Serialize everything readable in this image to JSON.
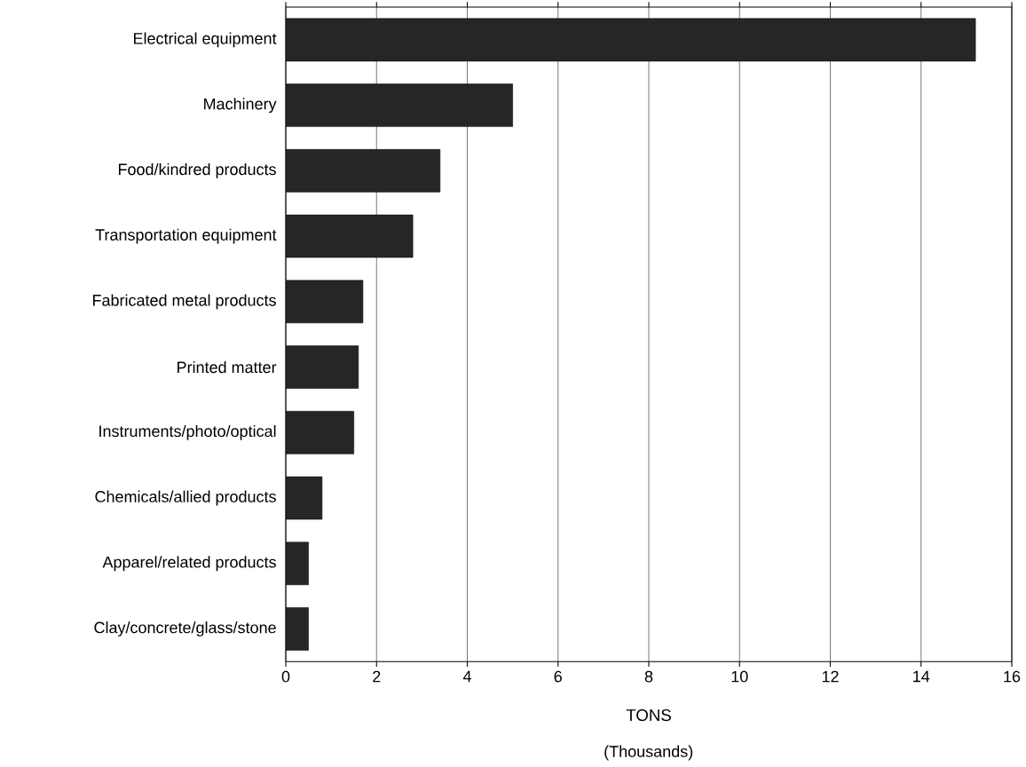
{
  "chart_data": {
    "type": "bar",
    "orientation": "horizontal",
    "xlabel": "TONS",
    "annotations": [
      "(Thousands)"
    ],
    "categories": [
      "Electrical equipment",
      "Machinery",
      "Food/kindred products",
      "Transportation equipment",
      "Fabricated metal products",
      "Printed matter",
      "Instruments/photo/optical",
      "Chemicals/allied products",
      "Apparel/related products",
      "Clay/concrete/glass/stone"
    ],
    "values": [
      15.2,
      5.0,
      3.4,
      2.8,
      1.7,
      1.6,
      1.5,
      0.8,
      0.5,
      0.5
    ],
    "color": "#262626",
    "xlim": [
      0,
      16
    ],
    "xticks": [
      0,
      2,
      4,
      6,
      8,
      10,
      12,
      14,
      16
    ],
    "grid": "x"
  }
}
